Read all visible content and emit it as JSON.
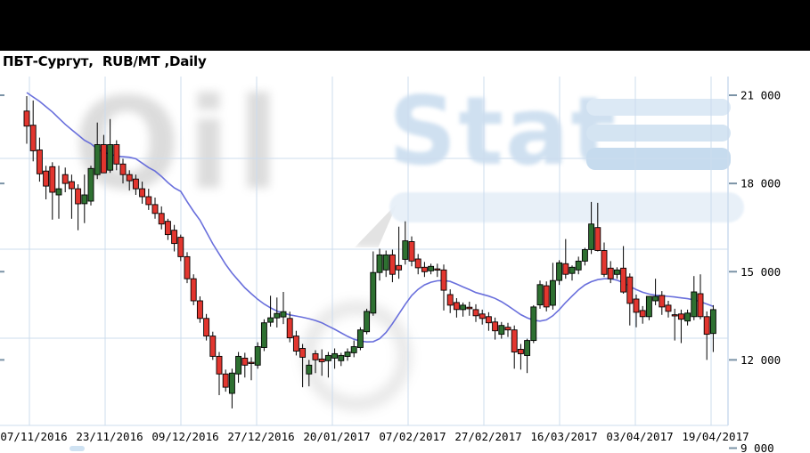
{
  "header": {
    "title": "ПБТ-Сургут,  RUB/MT ,Daily"
  },
  "watermark": {
    "word_gray": "Oil",
    "word_blue": "Stat",
    "gray_color": "#8d8d8d",
    "blue_color": "#c7dbee"
  },
  "chart_data": {
    "type": "candlestick",
    "title": "ПБТ-Сургут,  RUB/MT ,Daily",
    "instrument": "ПБТ-Сургут",
    "unit": "RUB/MT",
    "period": "Daily",
    "x_tick_labels": [
      "07/11/2016",
      "23/11/2016",
      "09/12/2016",
      "27/12/2016",
      "20/01/2017",
      "07/02/2017",
      "27/02/2017",
      "16/03/2017",
      "03/04/2017",
      "19/04/2017"
    ],
    "y_tick_labels": [
      "21 000",
      "18 000",
      "15 000",
      "12 000",
      "9 000"
    ],
    "y_axis": {
      "min": 9000,
      "max": 21000,
      "step": 3000
    },
    "x_axis": {
      "start": "07/11/2016",
      "end": "19/04/2017",
      "candles_per_gridline": 12
    },
    "grid": true,
    "legend": "none",
    "candles": [
      [
        20460,
        20970,
        19350,
        19950
      ],
      [
        19980,
        20820,
        18750,
        19110
      ],
      [
        19140,
        19560,
        18060,
        18330
      ],
      [
        18420,
        18600,
        17460,
        17910
      ],
      [
        18570,
        18720,
        16770,
        17700
      ],
      [
        17610,
        18600,
        16800,
        17820
      ],
      [
        18300,
        18540,
        17700,
        18000
      ],
      [
        18060,
        18300,
        16800,
        17820
      ],
      [
        17820,
        17970,
        16410,
        17310
      ],
      [
        17310,
        18300,
        16650,
        17610
      ],
      [
        17400,
        18600,
        17250,
        18510
      ],
      [
        18300,
        20070,
        18150,
        19320
      ],
      [
        19320,
        19650,
        18600,
        18360
      ],
      [
        18450,
        20190,
        18360,
        19320
      ],
      [
        19320,
        19470,
        18450,
        18660
      ],
      [
        18660,
        18840,
        18000,
        18300
      ],
      [
        18300,
        18450,
        17760,
        18090
      ],
      [
        18150,
        18300,
        17610,
        17820
      ],
      [
        17820,
        18060,
        17310,
        17550
      ],
      [
        17550,
        17820,
        17100,
        17280
      ],
      [
        17280,
        17520,
        16800,
        16980
      ],
      [
        16980,
        17220,
        16440,
        16620
      ],
      [
        16710,
        16800,
        16080,
        16260
      ],
      [
        16410,
        16590,
        15690,
        15960
      ],
      [
        16170,
        16260,
        15360,
        15510
      ],
      [
        15510,
        15660,
        14610,
        14760
      ],
      [
        14760,
        14910,
        13860,
        14010
      ],
      [
        14010,
        14160,
        13260,
        13410
      ],
      [
        13410,
        13560,
        12660,
        12810
      ],
      [
        12810,
        12960,
        12000,
        12120
      ],
      [
        12120,
        12270,
        10800,
        11520
      ],
      [
        11520,
        11670,
        10920,
        11070
      ],
      [
        10860,
        11700,
        10350,
        11550
      ],
      [
        11520,
        12270,
        11220,
        12120
      ],
      [
        12060,
        12240,
        11400,
        11820
      ],
      [
        11910,
        12090,
        11310,
        11880
      ],
      [
        11820,
        12600,
        11700,
        12450
      ],
      [
        12420,
        13380,
        12300,
        13260
      ],
      [
        13280,
        14180,
        13130,
        13430
      ],
      [
        13430,
        14120,
        13100,
        13580
      ],
      [
        13460,
        14310,
        13220,
        13640
      ],
      [
        13410,
        13640,
        12600,
        12750
      ],
      [
        12810,
        12990,
        12150,
        12300
      ],
      [
        12390,
        12540,
        11070,
        12090
      ],
      [
        11520,
        12000,
        11100,
        11820
      ],
      [
        12210,
        12330,
        11550,
        12000
      ],
      [
        12030,
        12360,
        11460,
        11940
      ],
      [
        11970,
        12270,
        11400,
        12150
      ],
      [
        12060,
        12390,
        11700,
        12210
      ],
      [
        11970,
        12240,
        11790,
        12150
      ],
      [
        12120,
        12390,
        11970,
        12270
      ],
      [
        12240,
        12660,
        12090,
        12450
      ],
      [
        12420,
        13110,
        12330,
        13020
      ],
      [
        12960,
        13740,
        12870,
        13650
      ],
      [
        13590,
        15690,
        13500,
        14970
      ],
      [
        14970,
        15780,
        14700,
        15570
      ],
      [
        15060,
        15720,
        14820,
        15570
      ],
      [
        15570,
        15750,
        14640,
        14910
      ],
      [
        15210,
        16530,
        14760,
        15060
      ],
      [
        15420,
        16710,
        15240,
        16050
      ],
      [
        16020,
        16200,
        15180,
        15360
      ],
      [
        15430,
        15600,
        14910,
        15130
      ],
      [
        15150,
        15330,
        14820,
        15000
      ],
      [
        15030,
        15270,
        14910,
        15180
      ],
      [
        15090,
        15270,
        14820,
        15060
      ],
      [
        15060,
        15240,
        13680,
        14370
      ],
      [
        14220,
        14400,
        13590,
        13860
      ],
      [
        13950,
        14100,
        13440,
        13710
      ],
      [
        13710,
        13950,
        13470,
        13860
      ],
      [
        13790,
        13980,
        13500,
        13740
      ],
      [
        13710,
        13890,
        13290,
        13500
      ],
      [
        13560,
        13710,
        13200,
        13410
      ],
      [
        13470,
        13620,
        12990,
        13260
      ],
      [
        13290,
        13440,
        12690,
        12990
      ],
      [
        12870,
        13290,
        12720,
        13170
      ],
      [
        13110,
        13260,
        12780,
        13020
      ],
      [
        13020,
        13170,
        11700,
        12270
      ],
      [
        12360,
        12540,
        11670,
        12210
      ],
      [
        12150,
        12720,
        11550,
        12660
      ],
      [
        12660,
        13860,
        12570,
        13800
      ],
      [
        13870,
        14700,
        13740,
        14560
      ],
      [
        14520,
        14670,
        13650,
        13800
      ],
      [
        13860,
        15300,
        13710,
        14700
      ],
      [
        14700,
        15390,
        14550,
        15300
      ],
      [
        15270,
        16110,
        14760,
        14910
      ],
      [
        14940,
        15210,
        14700,
        15150
      ],
      [
        15060,
        15510,
        14910,
        15360
      ],
      [
        15360,
        15810,
        15210,
        15750
      ],
      [
        15750,
        17370,
        15600,
        16620
      ],
      [
        16500,
        17340,
        15690,
        15720
      ],
      [
        15720,
        15990,
        14820,
        14910
      ],
      [
        15120,
        15360,
        14610,
        14760
      ],
      [
        14910,
        15150,
        14760,
        15060
      ],
      [
        15120,
        15870,
        14250,
        14310
      ],
      [
        14820,
        14940,
        13170,
        13920
      ],
      [
        14070,
        14220,
        13110,
        13620
      ],
      [
        13680,
        13830,
        13230,
        13470
      ],
      [
        13470,
        14100,
        13350,
        14160
      ],
      [
        14010,
        14760,
        13860,
        14160
      ],
      [
        14190,
        14340,
        13530,
        13800
      ],
      [
        13860,
        14010,
        13440,
        13650
      ],
      [
        13530,
        13740,
        12660,
        13500
      ],
      [
        13560,
        13710,
        12570,
        13380
      ],
      [
        13320,
        13710,
        13170,
        13590
      ],
      [
        13470,
        14850,
        13350,
        14310
      ],
      [
        14250,
        14910,
        13380,
        13470
      ],
      [
        13470,
        13650,
        12000,
        12870
      ],
      [
        12900,
        13860,
        12270,
        13710
      ]
    ],
    "moving_average": {
      "name": "MA",
      "values": [
        21090,
        20940,
        20790,
        20610,
        20430,
        20220,
        20010,
        19830,
        19650,
        19470,
        19350,
        19170,
        19060,
        18990,
        18930,
        18910,
        18890,
        18840,
        18690,
        18540,
        18420,
        18240,
        18030,
        17850,
        17730,
        17380,
        17050,
        16750,
        16350,
        15950,
        15600,
        15250,
        14950,
        14700,
        14450,
        14250,
        14060,
        13900,
        13770,
        13660,
        13590,
        13530,
        13490,
        13450,
        13400,
        13340,
        13260,
        13150,
        13040,
        12920,
        12800,
        12700,
        12640,
        12610,
        12620,
        12720,
        12930,
        13230,
        13560,
        13890,
        14190,
        14400,
        14550,
        14640,
        14690,
        14700,
        14670,
        14580,
        14480,
        14390,
        14290,
        14230,
        14170,
        14090,
        13980,
        13840,
        13690,
        13540,
        13430,
        13350,
        13320,
        13360,
        13500,
        13710,
        13950,
        14170,
        14380,
        14550,
        14660,
        14730,
        14760,
        14760,
        14710,
        14620,
        14500,
        14390,
        14300,
        14240,
        14200,
        14180,
        14160,
        14140,
        14110,
        14080,
        14040,
        13980,
        13900,
        13820
      ]
    },
    "colors": {
      "up": "#2e7031",
      "down": "#e2362f",
      "ma": "#5c63d9",
      "grid": "#ccdcee",
      "tick": "#7b93a6",
      "axis_text": "#000000"
    }
  }
}
